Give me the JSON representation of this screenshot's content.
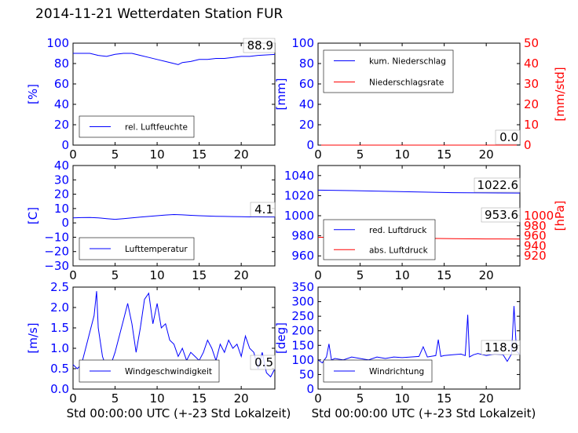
{
  "title": "2014-11-21 Wetterdaten Station FUR",
  "colors": {
    "primary": "#0000ff",
    "secondary": "#ff0000",
    "axis": "#000000"
  },
  "chart_data": [
    {
      "type": "line",
      "xlim": [
        0,
        24
      ],
      "ylim": [
        0,
        100
      ],
      "xticks": [
        0,
        5,
        10,
        15,
        20
      ],
      "yticks": [
        0,
        20,
        40,
        60,
        80,
        100
      ],
      "ylabel": "[%]",
      "xlabel": "",
      "legend_placement": "bottom-left",
      "last_value_label": "88.9",
      "series": [
        {
          "name": "rel. Luftfeuchte",
          "color": "#0000ff",
          "x": [
            0,
            1,
            2,
            3,
            4,
            5,
            6,
            7,
            8,
            9,
            10,
            11,
            12,
            12.5,
            13,
            14,
            15,
            16,
            17,
            18,
            19,
            20,
            21,
            22,
            23,
            24
          ],
          "y": [
            90,
            90,
            90,
            88,
            87,
            89,
            90,
            90,
            88,
            86,
            84,
            82,
            80,
            79,
            81,
            82,
            84,
            84,
            85,
            85,
            86,
            87,
            87,
            88,
            88.5,
            88.9
          ]
        }
      ]
    },
    {
      "type": "line",
      "xlim": [
        0,
        24
      ],
      "ylim": [
        0,
        100
      ],
      "ylim_right": [
        0,
        50
      ],
      "xticks": [
        0,
        5,
        10,
        15,
        20
      ],
      "yticks": [
        0,
        20,
        40,
        60,
        80,
        100
      ],
      "yticks_right": [
        0,
        10,
        20,
        30,
        40,
        50
      ],
      "ylabel": "[mm]",
      "ylabel_right": "[mm/std]",
      "xlabel": "",
      "legend_placement": "top-left",
      "last_value_label": "0.0",
      "series": [
        {
          "name": "kum. Niederschlag",
          "color": "#0000ff",
          "axis": "left",
          "x": [
            0,
            24
          ],
          "y": [
            0,
            0
          ]
        },
        {
          "name": "Niederschlagsrate",
          "color": "#ff0000",
          "axis": "right",
          "x": [
            0,
            24
          ],
          "y": [
            0,
            0
          ]
        }
      ]
    },
    {
      "type": "line",
      "xlim": [
        0,
        24
      ],
      "ylim": [
        -30,
        40
      ],
      "xticks": [
        0,
        5,
        10,
        15,
        20
      ],
      "yticks": [
        -30,
        -20,
        -10,
        0,
        10,
        20,
        30,
        40
      ],
      "ylabel": "[C]",
      "xlabel": "",
      "legend_placement": "bottom-left",
      "last_value_label": "4.1",
      "series": [
        {
          "name": "Lufttemperatur",
          "color": "#0000ff",
          "x": [
            0,
            1,
            2,
            3,
            4,
            5,
            6,
            7,
            8,
            9,
            10,
            11,
            12,
            13,
            14,
            15,
            16,
            17,
            18,
            19,
            20,
            21,
            22,
            23,
            24
          ],
          "y": [
            3.5,
            3.7,
            3.8,
            3.5,
            3.0,
            2.5,
            3.0,
            3.5,
            4.0,
            4.5,
            5.0,
            5.5,
            5.8,
            5.6,
            5.3,
            5.0,
            4.8,
            4.6,
            4.5,
            4.4,
            4.3,
            4.2,
            4.2,
            4.1,
            4.1
          ]
        }
      ]
    },
    {
      "type": "line",
      "xlim": [
        0,
        24
      ],
      "ylim": [
        950,
        1050
      ],
      "ylim_right": [
        900,
        1100
      ],
      "xticks": [
        0,
        5,
        10,
        15,
        20
      ],
      "yticks": [
        960,
        980,
        1000,
        1020,
        1040
      ],
      "yticks_right": [
        920,
        940,
        960,
        980,
        1000
      ],
      "ylabel": "",
      "ylabel_right": "[hPa]",
      "xlabel": "",
      "legend_placement": "bottom-left",
      "last_value_labels": [
        "1022.6",
        "953.6"
      ],
      "series": [
        {
          "name": "red. Luftdruck",
          "color": "#0000ff",
          "axis": "left",
          "x": [
            0,
            4,
            8,
            12,
            16,
            20,
            24
          ],
          "y": [
            1025.5,
            1025.0,
            1024.3,
            1023.6,
            1023.0,
            1022.7,
            1022.6
          ]
        },
        {
          "name": "abs. Luftdruck",
          "color": "#ff0000",
          "axis": "right",
          "x": [
            0,
            4,
            8,
            12,
            16,
            20,
            24
          ],
          "y": [
            957.0,
            956.5,
            955.8,
            955.0,
            954.3,
            953.8,
            953.6
          ]
        }
      ]
    },
    {
      "type": "line",
      "xlim": [
        0,
        24
      ],
      "ylim": [
        0,
        2.5
      ],
      "xticks": [
        0,
        5,
        10,
        15,
        20
      ],
      "yticks": [
        0.0,
        0.5,
        1.0,
        1.5,
        2.0,
        2.5
      ],
      "ylabel": "[m/s]",
      "xlabel": "Std 00:00:00 UTC (+-23 Std Lokalzeit)",
      "legend_placement": "bottom-center",
      "last_value_label": "0.5",
      "series": [
        {
          "name": "Windgeschwindigkeit",
          "color": "#0000ff",
          "x": [
            0,
            0.5,
            1,
            1.5,
            2,
            2.5,
            2.8,
            3,
            3.5,
            4,
            4.5,
            5,
            5.5,
            6,
            6.5,
            7,
            7.5,
            8,
            8.5,
            9,
            9.5,
            10,
            10.5,
            11,
            11.5,
            12,
            12.5,
            13,
            13.5,
            14,
            14.5,
            15,
            15.5,
            16,
            16.5,
            17,
            17.5,
            18,
            18.5,
            19,
            19.5,
            20,
            20.5,
            21,
            21.5,
            22,
            22.5,
            23,
            23.5,
            24
          ],
          "y": [
            0.6,
            0.5,
            0.6,
            1.0,
            1.4,
            1.8,
            2.4,
            1.5,
            0.8,
            0.5,
            0.6,
            0.9,
            1.3,
            1.7,
            2.1,
            1.6,
            0.9,
            1.5,
            2.2,
            2.35,
            1.6,
            2.1,
            1.5,
            1.6,
            1.2,
            1.1,
            0.8,
            1.0,
            0.7,
            0.9,
            0.8,
            0.7,
            0.9,
            1.2,
            1.0,
            0.7,
            1.1,
            0.9,
            1.2,
            1.0,
            1.1,
            0.8,
            1.3,
            1.0,
            0.9,
            0.5,
            0.9,
            0.4,
            0.3,
            0.5
          ]
        }
      ]
    },
    {
      "type": "line",
      "xlim": [
        0,
        24
      ],
      "ylim": [
        0,
        350
      ],
      "xticks": [
        0,
        5,
        10,
        15,
        20
      ],
      "yticks": [
        0,
        50,
        100,
        150,
        200,
        250,
        300,
        350
      ],
      "ylabel": "[deg]",
      "xlabel": "Std 00:00:00 UTC (+-23 Std Lokalzeit)",
      "legend_placement": "bottom-left",
      "last_value_label": "118.9",
      "series": [
        {
          "name": "Windrichtung",
          "color": "#0000ff",
          "x": [
            0,
            0.5,
            1,
            1.3,
            1.6,
            2,
            3,
            4,
            5,
            6,
            7,
            8,
            9,
            10,
            11,
            12,
            12.5,
            13,
            14,
            14.3,
            14.6,
            15,
            16,
            17,
            17.5,
            17.8,
            18,
            18.5,
            19,
            20,
            21,
            22,
            22.5,
            23,
            23.3,
            23.6,
            24
          ],
          "y": [
            100,
            90,
            110,
            155,
            100,
            105,
            100,
            110,
            105,
            100,
            110,
            105,
            110,
            108,
            110,
            112,
            145,
            110,
            115,
            170,
            112,
            115,
            118,
            120,
            115,
            255,
            110,
            118,
            122,
            115,
            120,
            118,
            95,
            120,
            285,
            130,
            119
          ]
        }
      ]
    }
  ]
}
